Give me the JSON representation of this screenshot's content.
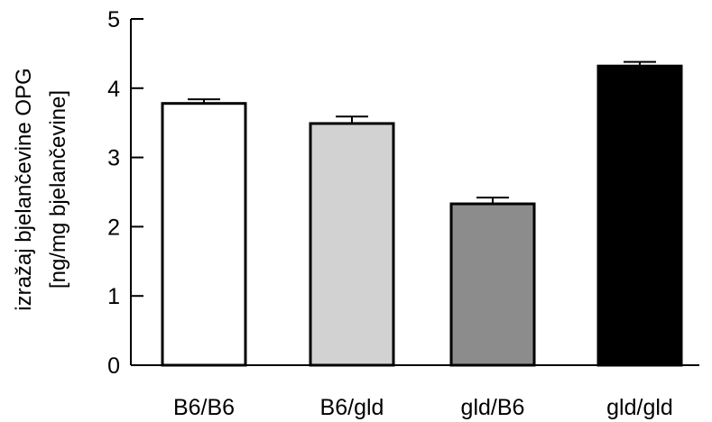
{
  "chart_data": {
    "type": "bar",
    "categories": [
      "B6/B6",
      "B6/gld",
      "gld/B6",
      "gld/gld"
    ],
    "values": [
      3.78,
      3.49,
      2.33,
      4.32
    ],
    "errors": [
      0.06,
      0.1,
      0.09,
      0.06
    ],
    "bar_colors": [
      "#ffffff",
      "#d2d2d2",
      "#8c8c8c",
      "#000000"
    ],
    "bar_edge_color": "#000000",
    "title": "",
    "xlabel": "",
    "ylabel_line1": "izražaj bjelančevine OPG",
    "ylabel_line2": "[ng/mg bjelančevine]",
    "ylim": [
      0,
      5
    ],
    "yticks": [
      0,
      1,
      2,
      3,
      4,
      5
    ],
    "grid": false,
    "legend": false
  }
}
